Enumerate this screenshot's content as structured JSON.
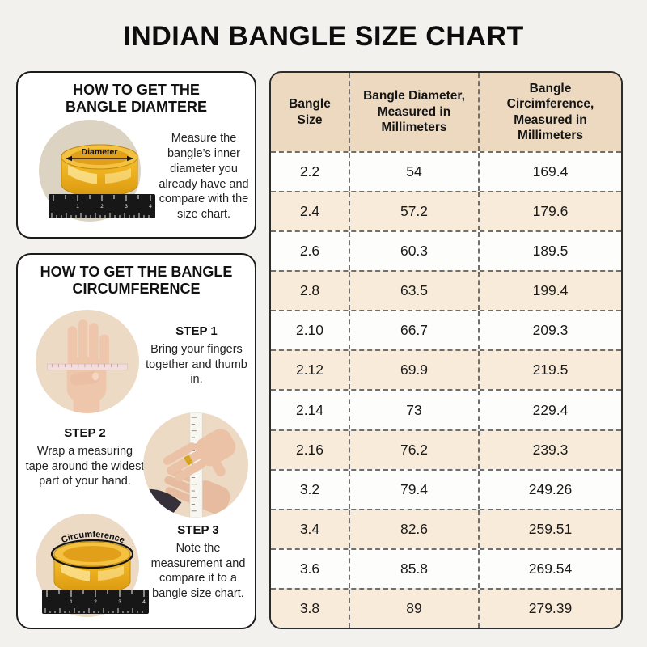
{
  "page": {
    "title": "INDIAN BANGLE SIZE CHART"
  },
  "diameter_box": {
    "title": "HOW TO GET THE BANGLE DIAMTERE",
    "description": "Measure the bangle’s inner diameter you already have and compare with the size chart.",
    "diagram_label": "Diameter"
  },
  "circumference_box": {
    "title": "HOW TO GET THE BANGLE CIRCUMFERENCE",
    "diagram_label": "Circumference",
    "steps": [
      {
        "label": "STEP 1",
        "text": "Bring your fingers together and thumb in."
      },
      {
        "label": "STEP 2",
        "text": "Wrap a measuring tape around the widest part of your hand."
      },
      {
        "label": "STEP 3",
        "text": "Note the measurement and compare it to a bangle size chart."
      }
    ]
  },
  "chart_data": {
    "type": "table",
    "columns": [
      "Bangle Size",
      "Bangle Diameter, Measured in Millimeters",
      "Bangle Circimference, Measured in Millimeters"
    ],
    "rows": [
      [
        "2.2",
        "54",
        "169.4"
      ],
      [
        "2.4",
        "57.2",
        "179.6"
      ],
      [
        "2.6",
        "60.3",
        "189.5"
      ],
      [
        "2.8",
        "63.5",
        "199.4"
      ],
      [
        "2.10",
        "66.7",
        "209.3"
      ],
      [
        "2.12",
        "69.9",
        "219.5"
      ],
      [
        "2.14",
        "73",
        "229.4"
      ],
      [
        "2.16",
        "76.2",
        "239.3"
      ],
      [
        "3.2",
        "79.4",
        "249.26"
      ],
      [
        "3.4",
        "82.6",
        "259.51"
      ],
      [
        "3.6",
        "85.8",
        "269.54"
      ],
      [
        "3.8",
        "89",
        "279.39"
      ]
    ]
  },
  "colors": {
    "page_bg": "#f2f1ee",
    "table_header_bg": "#ecd9c0",
    "row_alt_bg": "#f9ebda",
    "row_bg": "#fdfdfb",
    "dash_border": "#6f6f6f",
    "bangle_gold": "#efb321",
    "circle_beige": "#eddac4"
  }
}
